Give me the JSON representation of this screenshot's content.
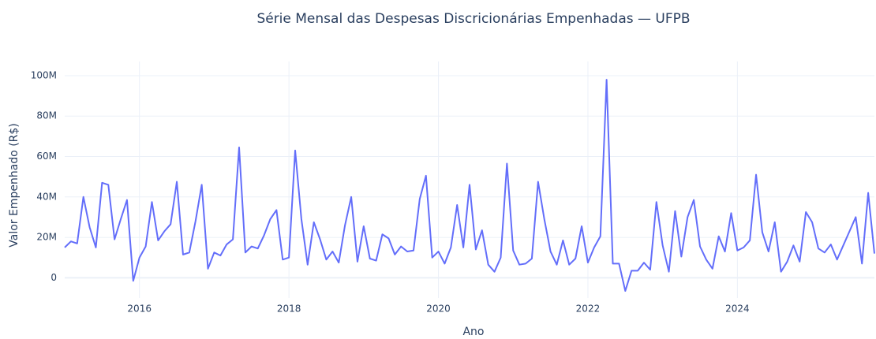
{
  "chart_data": {
    "type": "line",
    "title": "Série Mensal das Despesas Discricionárias Empenhadas — UFPB",
    "x_label": "Ano",
    "y_label": "Valor Empenhado (R$)",
    "xlim": [
      "2015-01",
      "2025-11"
    ],
    "xticks": [
      2016,
      2018,
      2020,
      2022,
      2024
    ],
    "ylim": [
      -10000000,
      107000000
    ],
    "yticks": [
      {
        "value": 0,
        "label": "0"
      },
      {
        "value": 20000000,
        "label": "20M"
      },
      {
        "value": 40000000,
        "label": "40M"
      },
      {
        "value": 60000000,
        "label": "60M"
      },
      {
        "value": 80000000,
        "label": "80M"
      },
      {
        "value": 100000000,
        "label": "100M"
      }
    ],
    "grid": true,
    "x": [
      "2015-01",
      "2015-02",
      "2015-03",
      "2015-04",
      "2015-05",
      "2015-06",
      "2015-07",
      "2015-08",
      "2015-09",
      "2015-10",
      "2015-11",
      "2015-12",
      "2016-01",
      "2016-02",
      "2016-03",
      "2016-04",
      "2016-05",
      "2016-06",
      "2016-07",
      "2016-08",
      "2016-09",
      "2016-10",
      "2016-11",
      "2016-12",
      "2017-01",
      "2017-02",
      "2017-03",
      "2017-04",
      "2017-05",
      "2017-06",
      "2017-07",
      "2017-08",
      "2017-09",
      "2017-10",
      "2017-11",
      "2017-12",
      "2018-01",
      "2018-02",
      "2018-03",
      "2018-04",
      "2018-05",
      "2018-06",
      "2018-07",
      "2018-08",
      "2018-09",
      "2018-10",
      "2018-11",
      "2018-12",
      "2019-01",
      "2019-02",
      "2019-03",
      "2019-04",
      "2019-05",
      "2019-06",
      "2019-07",
      "2019-08",
      "2019-09",
      "2019-10",
      "2019-11",
      "2019-12",
      "2020-01",
      "2020-02",
      "2020-03",
      "2020-04",
      "2020-05",
      "2020-06",
      "2020-07",
      "2020-08",
      "2020-09",
      "2020-10",
      "2020-11",
      "2020-12",
      "2021-01",
      "2021-02",
      "2021-03",
      "2021-04",
      "2021-05",
      "2021-06",
      "2021-07",
      "2021-08",
      "2021-09",
      "2021-10",
      "2021-11",
      "2021-12",
      "2022-01",
      "2022-02",
      "2022-03",
      "2022-04",
      "2022-05",
      "2022-06",
      "2022-07",
      "2022-08",
      "2022-09",
      "2022-10",
      "2022-11",
      "2022-12",
      "2023-01",
      "2023-02",
      "2023-03",
      "2023-04",
      "2023-05",
      "2023-06",
      "2023-07",
      "2023-08",
      "2023-09",
      "2023-10",
      "2023-11",
      "2023-12",
      "2024-01",
      "2024-02",
      "2024-03",
      "2024-04",
      "2024-05",
      "2024-06",
      "2024-07",
      "2024-08",
      "2024-09",
      "2024-10",
      "2024-11",
      "2024-12",
      "2025-01",
      "2025-02",
      "2025-03",
      "2025-04",
      "2025-05",
      "2025-06",
      "2025-07",
      "2025-08",
      "2025-09",
      "2025-10",
      "2025-11"
    ],
    "series": [
      {
        "color": "#636efa",
        "values": [
          15000000,
          18000000,
          17000000,
          40000000,
          25000000,
          15000000,
          47000000,
          46000000,
          19000000,
          29000000,
          38500000,
          -1500000,
          10000000,
          15500000,
          37500000,
          18500000,
          23000000,
          26500000,
          47500000,
          11500000,
          12500000,
          28000000,
          46000000,
          4500000,
          12500000,
          11000000,
          16500000,
          19000000,
          64500000,
          12500000,
          15500000,
          14500000,
          21000000,
          29000000,
          33500000,
          9000000,
          10000000,
          63000000,
          29000000,
          6500000,
          27500000,
          19000000,
          9000000,
          13000000,
          7500000,
          26000000,
          40000000,
          8000000,
          25500000,
          9500000,
          8500000,
          21500000,
          19500000,
          11500000,
          15500000,
          13000000,
          13500000,
          39000000,
          50500000,
          10000000,
          13000000,
          7000000,
          15000000,
          36000000,
          15000000,
          46000000,
          14000000,
          23500000,
          6500000,
          3000000,
          10000000,
          56500000,
          13500000,
          6500000,
          7000000,
          9500000,
          47500000,
          29000000,
          13000000,
          6500000,
          18500000,
          6500000,
          9500000,
          25500000,
          7500000,
          15000000,
          20500000,
          98000000,
          7000000,
          7000000,
          -6500000,
          3500000,
          3500000,
          7500000,
          4000000,
          37500000,
          16000000,
          3000000,
          33000000,
          10500000,
          30000000,
          38500000,
          15500000,
          9000000,
          4500000,
          20500000,
          13000000,
          32000000,
          13500000,
          15000000,
          18500000,
          51000000,
          22500000,
          13000000,
          27500000,
          3000000,
          8000000,
          16000000,
          8000000,
          32500000,
          27500000,
          14500000,
          12500000,
          16500000,
          9000000,
          16000000,
          23000000,
          30000000,
          7000000,
          42000000,
          12000000
        ]
      }
    ]
  }
}
